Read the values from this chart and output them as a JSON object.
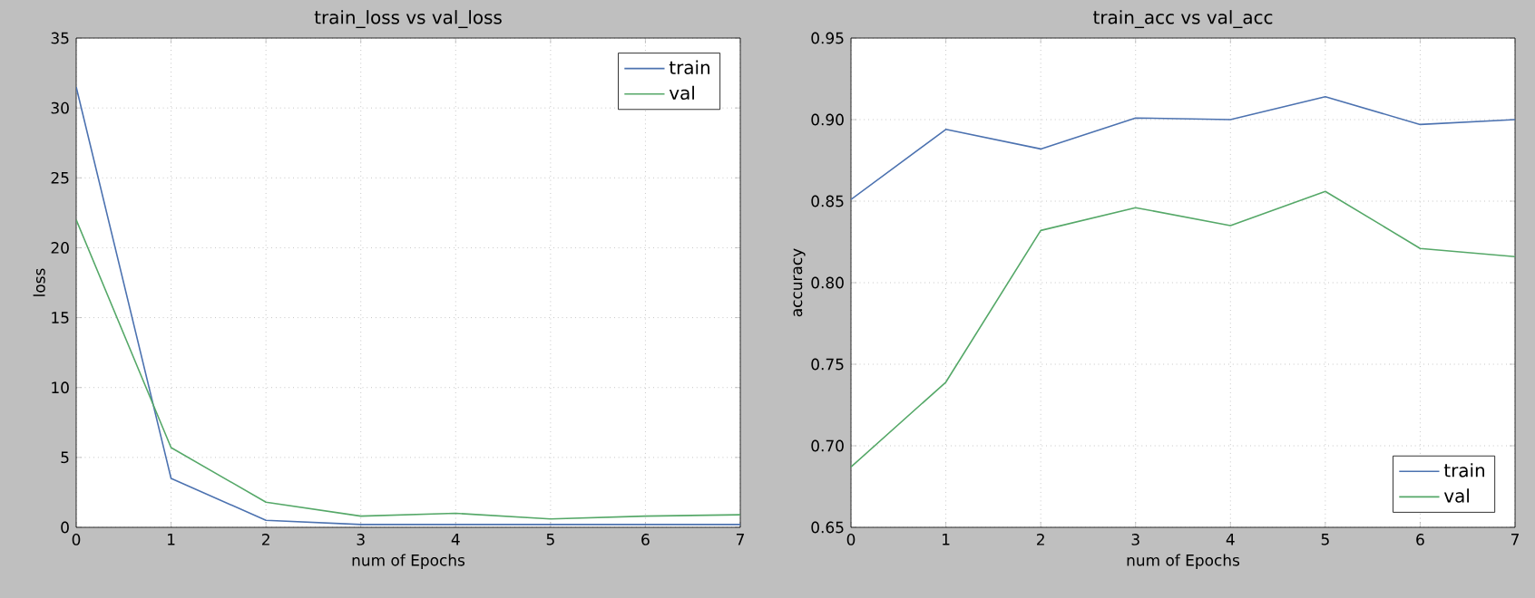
{
  "chart_data": [
    {
      "type": "line",
      "title": "train_loss vs val_loss",
      "xlabel": "num of Epochs",
      "ylabel": "loss",
      "x": [
        0,
        1,
        2,
        3,
        4,
        5,
        6,
        7
      ],
      "series": [
        {
          "name": "train",
          "color": "#4c72b0",
          "values": [
            31.5,
            3.5,
            0.5,
            0.2,
            0.2,
            0.2,
            0.2,
            0.2
          ]
        },
        {
          "name": "val",
          "color": "#55a868",
          "values": [
            22,
            5.7,
            1.8,
            0.8,
            1.0,
            0.6,
            0.8,
            0.9
          ]
        }
      ],
      "xlim": [
        0,
        7
      ],
      "xticks": [
        0,
        1,
        2,
        3,
        4,
        5,
        6,
        7
      ],
      "ylim": [
        0,
        35
      ],
      "yticks": [
        0,
        5,
        10,
        15,
        20,
        25,
        30,
        35
      ],
      "grid": true,
      "legend": "top right"
    },
    {
      "type": "line",
      "title": "train_acc vs val_acc",
      "xlabel": "num of Epochs",
      "ylabel": "accuracy",
      "x": [
        0,
        1,
        2,
        3,
        4,
        5,
        6,
        7
      ],
      "series": [
        {
          "name": "train",
          "color": "#4c72b0",
          "values": [
            0.851,
            0.894,
            0.882,
            0.901,
            0.9,
            0.914,
            0.897,
            0.9
          ]
        },
        {
          "name": "val",
          "color": "#55a868",
          "values": [
            0.687,
            0.739,
            0.832,
            0.846,
            0.835,
            0.856,
            0.821,
            0.816
          ]
        }
      ],
      "xlim": [
        0,
        7
      ],
      "xticks": [
        0,
        1,
        2,
        3,
        4,
        5,
        6,
        7
      ],
      "ylim": [
        0.65,
        0.95
      ],
      "yticks": [
        {
          "value": 0.65,
          "label": "0.65"
        },
        {
          "value": 0.7,
          "label": "0.70"
        },
        {
          "value": 0.75,
          "label": "0.75"
        },
        {
          "value": 0.8,
          "label": "0.80"
        },
        {
          "value": 0.85,
          "label": "0.85"
        },
        {
          "value": 0.9,
          "label": "0.90"
        },
        {
          "value": 0.95,
          "label": "0.95"
        }
      ],
      "grid": true,
      "legend": "bottom right"
    }
  ]
}
